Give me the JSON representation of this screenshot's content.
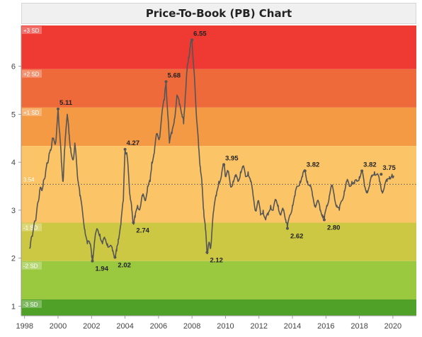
{
  "chart_data": {
    "type": "line",
    "title": "Price-To-Book (PB) Chart",
    "xlabel": "",
    "ylabel": "",
    "xlim": [
      1997.8,
      2021.4
    ],
    "ylim": [
      0.8,
      6.85
    ],
    "x_ticks": [
      "1998",
      "2000",
      "2002",
      "2004",
      "2006",
      "2008",
      "2010",
      "2012",
      "2014",
      "2016",
      "2018",
      "2020"
    ],
    "y_ticks": [
      "1",
      "2",
      "3",
      "4",
      "5",
      "6"
    ],
    "mean": {
      "label": "3.54",
      "value": 3.54
    },
    "bands": [
      {
        "label": "+3 SD",
        "from": 5.94,
        "to": 6.85,
        "color": "#ee3a32"
      },
      {
        "label": "+2 SD",
        "from": 5.14,
        "to": 5.94,
        "color": "#ef6a3b"
      },
      {
        "label": "+1 SD",
        "from": 4.34,
        "to": 5.14,
        "color": "#f49a45"
      },
      {
        "label": "",
        "from": 3.54,
        "to": 4.34,
        "color": "#fbc466"
      },
      {
        "label": "",
        "from": 2.74,
        "to": 3.54,
        "color": "#fbc466"
      },
      {
        "label": "-1 SD",
        "from": 1.94,
        "to": 2.74,
        "color": "#cdc844"
      },
      {
        "label": "-2 SD",
        "from": 1.14,
        "to": 1.94,
        "color": "#9ac83e"
      },
      {
        "label": "-3 SD",
        "from": 0.8,
        "to": 1.14,
        "color": "#4fa128"
      }
    ],
    "series": [
      {
        "points": [
          [
            1998.3,
            2.2
          ],
          [
            1998.5,
            2.55
          ],
          [
            1998.7,
            2.9
          ],
          [
            1998.9,
            3.4
          ],
          [
            1999.1,
            3.5
          ],
          [
            1999.3,
            3.9
          ],
          [
            1999.5,
            4.2
          ],
          [
            1999.7,
            4.5
          ],
          [
            1999.85,
            4.4
          ],
          [
            2000.0,
            5.11
          ],
          [
            2000.1,
            4.6
          ],
          [
            2000.2,
            4.0
          ],
          [
            2000.3,
            3.6
          ],
          [
            2000.4,
            4.3
          ],
          [
            2000.55,
            5.0
          ],
          [
            2000.65,
            4.6
          ],
          [
            2000.75,
            4.3
          ],
          [
            2000.9,
            4.05
          ],
          [
            2001.0,
            4.4
          ],
          [
            2001.1,
            4.0
          ],
          [
            2001.2,
            3.6
          ],
          [
            2001.3,
            3.3
          ],
          [
            2001.45,
            3.0
          ],
          [
            2001.6,
            2.6
          ],
          [
            2001.75,
            2.3
          ],
          [
            2001.9,
            2.3
          ],
          [
            2002.0,
            2.1
          ],
          [
            2002.05,
            1.94
          ],
          [
            2002.2,
            2.4
          ],
          [
            2002.35,
            2.6
          ],
          [
            2002.5,
            2.5
          ],
          [
            2002.65,
            2.3
          ],
          [
            2002.8,
            2.4
          ],
          [
            2002.95,
            2.3
          ],
          [
            2003.1,
            2.25
          ],
          [
            2003.25,
            2.15
          ],
          [
            2003.4,
            2.02
          ],
          [
            2003.5,
            2.15
          ],
          [
            2003.6,
            2.4
          ],
          [
            2003.75,
            2.7
          ],
          [
            2003.9,
            3.2
          ],
          [
            2004.0,
            4.27
          ],
          [
            2004.1,
            4.2
          ],
          [
            2004.2,
            3.8
          ],
          [
            2004.3,
            3.3
          ],
          [
            2004.4,
            3.0
          ],
          [
            2004.5,
            2.74
          ],
          [
            2004.6,
            2.85
          ],
          [
            2004.75,
            3.1
          ],
          [
            2004.9,
            3.05
          ],
          [
            2005.05,
            3.3
          ],
          [
            2005.2,
            3.2
          ],
          [
            2005.35,
            3.5
          ],
          [
            2005.5,
            3.6
          ],
          [
            2005.6,
            4.0
          ],
          [
            2005.75,
            4.2
          ],
          [
            2005.9,
            4.6
          ],
          [
            2006.05,
            4.5
          ],
          [
            2006.2,
            5.0
          ],
          [
            2006.35,
            5.3
          ],
          [
            2006.45,
            5.68
          ],
          [
            2006.55,
            5.0
          ],
          [
            2006.65,
            4.4
          ],
          [
            2006.8,
            4.6
          ],
          [
            2006.95,
            4.9
          ],
          [
            2007.1,
            5.4
          ],
          [
            2007.25,
            5.2
          ],
          [
            2007.4,
            5.0
          ],
          [
            2007.5,
            4.8
          ],
          [
            2007.6,
            5.4
          ],
          [
            2007.7,
            5.9
          ],
          [
            2007.8,
            6.2
          ],
          [
            2007.9,
            6.4
          ],
          [
            2008.0,
            6.55
          ],
          [
            2008.1,
            6.0
          ],
          [
            2008.2,
            5.4
          ],
          [
            2008.3,
            4.8
          ],
          [
            2008.4,
            4.3
          ],
          [
            2008.5,
            3.9
          ],
          [
            2008.6,
            3.5
          ],
          [
            2008.7,
            3.0
          ],
          [
            2008.8,
            2.6
          ],
          [
            2008.9,
            2.12
          ],
          [
            2009.0,
            2.3
          ],
          [
            2009.1,
            2.2
          ],
          [
            2009.2,
            2.6
          ],
          [
            2009.3,
            3.0
          ],
          [
            2009.45,
            3.3
          ],
          [
            2009.6,
            3.6
          ],
          [
            2009.75,
            3.7
          ],
          [
            2009.9,
            3.95
          ],
          [
            2010.0,
            3.7
          ],
          [
            2010.15,
            3.8
          ],
          [
            2010.3,
            3.5
          ],
          [
            2010.45,
            3.6
          ],
          [
            2010.6,
            3.7
          ],
          [
            2010.75,
            3.6
          ],
          [
            2010.9,
            3.8
          ],
          [
            2011.05,
            3.9
          ],
          [
            2011.2,
            3.7
          ],
          [
            2011.35,
            3.8
          ],
          [
            2011.5,
            3.6
          ],
          [
            2011.65,
            3.3
          ],
          [
            2011.8,
            3.0
          ],
          [
            2011.95,
            3.2
          ],
          [
            2012.1,
            2.9
          ],
          [
            2012.25,
            3.0
          ],
          [
            2012.4,
            2.8
          ],
          [
            2012.55,
            2.9
          ],
          [
            2012.7,
            3.1
          ],
          [
            2012.85,
            3.0
          ],
          [
            2013.0,
            3.2
          ],
          [
            2013.15,
            3.1
          ],
          [
            2013.3,
            2.9
          ],
          [
            2013.45,
            3.0
          ],
          [
            2013.6,
            2.8
          ],
          [
            2013.7,
            2.62
          ],
          [
            2013.85,
            2.9
          ],
          [
            2014.0,
            3.1
          ],
          [
            2014.15,
            3.3
          ],
          [
            2014.3,
            3.5
          ],
          [
            2014.45,
            3.6
          ],
          [
            2014.6,
            3.7
          ],
          [
            2014.75,
            3.82
          ],
          [
            2014.9,
            3.6
          ],
          [
            2015.05,
            3.5
          ],
          [
            2015.2,
            3.3
          ],
          [
            2015.35,
            3.1
          ],
          [
            2015.5,
            3.2
          ],
          [
            2015.65,
            3.0
          ],
          [
            2015.8,
            2.9
          ],
          [
            2015.9,
            2.8
          ],
          [
            2016.05,
            3.1
          ],
          [
            2016.2,
            3.3
          ],
          [
            2016.35,
            3.5
          ],
          [
            2016.5,
            3.3
          ],
          [
            2016.65,
            3.1
          ],
          [
            2016.8,
            3.0
          ],
          [
            2016.95,
            3.2
          ],
          [
            2017.1,
            3.4
          ],
          [
            2017.25,
            3.6
          ],
          [
            2017.4,
            3.5
          ],
          [
            2017.55,
            3.6
          ],
          [
            2017.7,
            3.55
          ],
          [
            2017.85,
            3.6
          ],
          [
            2018.0,
            3.7
          ],
          [
            2018.15,
            3.82
          ],
          [
            2018.3,
            3.5
          ],
          [
            2018.45,
            3.4
          ],
          [
            2018.6,
            3.5
          ],
          [
            2018.75,
            3.7
          ],
          [
            2018.9,
            3.8
          ],
          [
            2019.05,
            3.75
          ],
          [
            2019.2,
            3.6
          ],
          [
            2019.35,
            3.4
          ],
          [
            2019.5,
            3.5
          ],
          [
            2019.65,
            3.6
          ],
          [
            2019.8,
            3.7
          ],
          [
            2019.95,
            3.75
          ],
          [
            2020.05,
            3.72
          ]
        ]
      }
    ],
    "annotations": [
      {
        "text": "5.11",
        "x": 2000.0,
        "y": 5.11
      },
      {
        "text": "1.94",
        "x": 2002.05,
        "y": 1.94
      },
      {
        "text": "2.02",
        "x": 2003.4,
        "y": 2.02
      },
      {
        "text": "4.27",
        "x": 2004.0,
        "y": 4.27
      },
      {
        "text": "2.74",
        "x": 2004.5,
        "y": 2.74
      },
      {
        "text": "5.68",
        "x": 2006.45,
        "y": 5.68
      },
      {
        "text": "6.55",
        "x": 2008.0,
        "y": 6.55
      },
      {
        "text": "2.12",
        "x": 2008.9,
        "y": 2.12
      },
      {
        "text": "3.95",
        "x": 2009.9,
        "y": 3.95
      },
      {
        "text": "2.62",
        "x": 2013.7,
        "y": 2.62
      },
      {
        "text": "3.82",
        "x": 2014.75,
        "y": 3.82
      },
      {
        "text": "2.80",
        "x": 2015.9,
        "y": 2.8
      },
      {
        "text": "3.82",
        "x": 2018.15,
        "y": 3.82
      },
      {
        "text": "3.75",
        "x": 2019.3,
        "y": 3.75
      }
    ],
    "grid": false,
    "legend": "none",
    "colors": {
      "line": "#555555",
      "mean_line": "#7a6a4a",
      "axis_text": "#444444"
    }
  }
}
